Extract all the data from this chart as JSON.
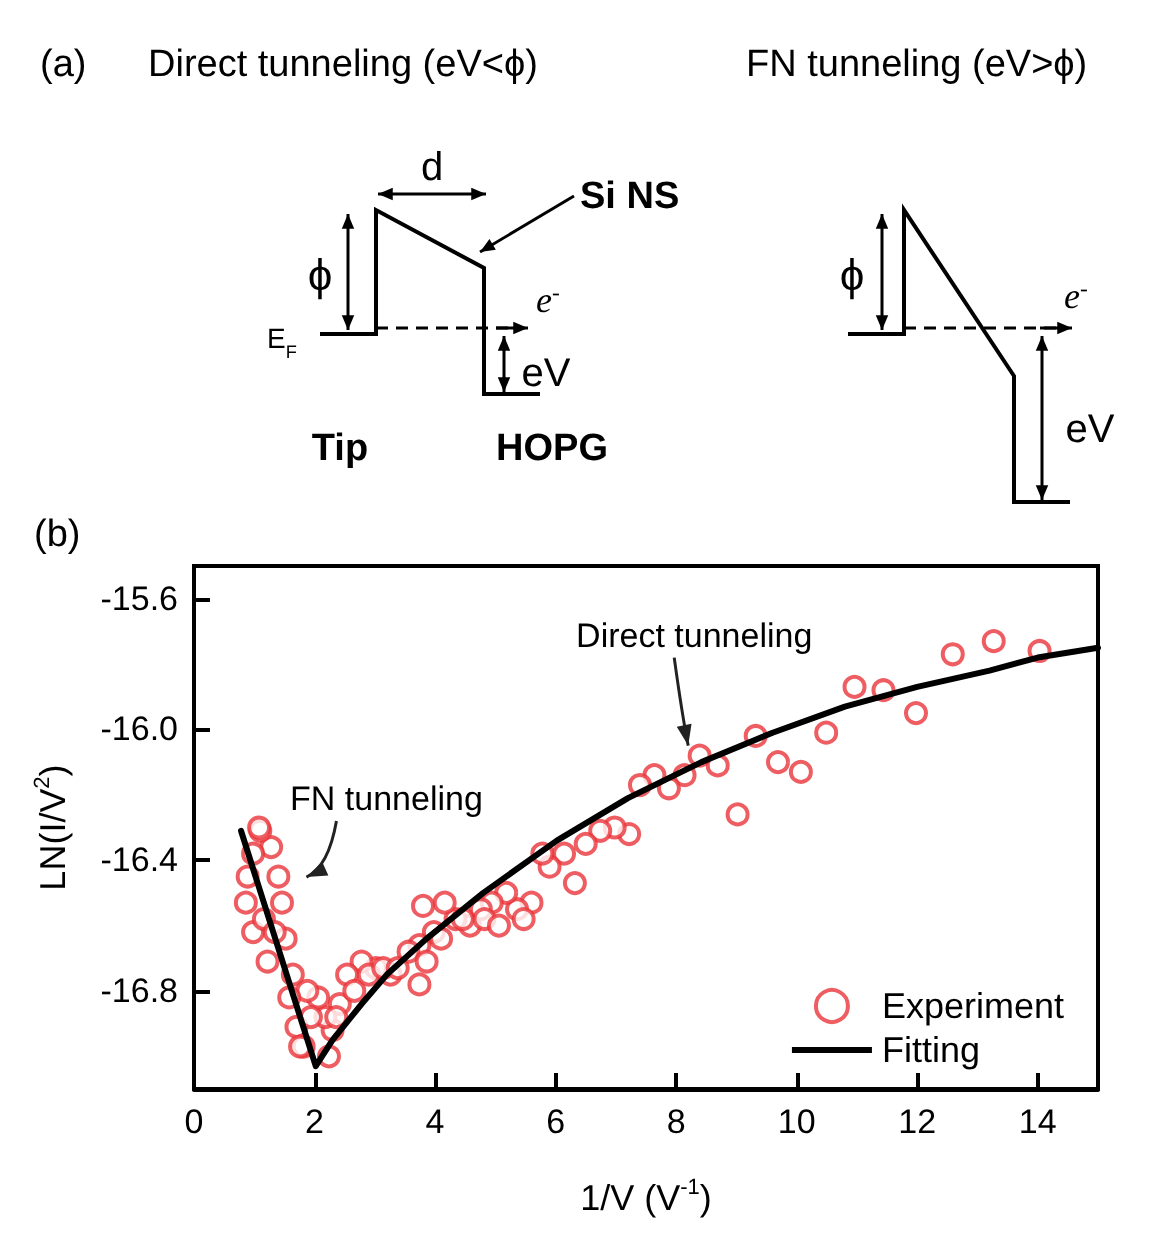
{
  "chart_data": [
    {
      "type": "other",
      "title": "(a)",
      "annotations": [
        "Direct tunneling (eV<ϕ)",
        "FN tunneling (eV>ϕ)",
        "d",
        "Si NS",
        "ϕ",
        "E$_{F}$",
        "e$^{-}$",
        "eV",
        "Tip",
        "HOPG",
        "ϕ",
        "e$^{-}$",
        "eV"
      ]
    },
    {
      "type": "scatter",
      "title": "(b)",
      "xlabel": "1/V (V$^{-1}$)",
      "ylabel": "LN(I/V$^{2}$)",
      "xlim": [
        0,
        15
      ],
      "ylim": [
        -17.1,
        -15.5
      ],
      "xticks": [
        0,
        2,
        4,
        6,
        8,
        10,
        12,
        14
      ],
      "yticks": [
        -16.8,
        -16.4,
        {
          "value": -16,
          "label": "-16.0"
        },
        -15.6
      ],
      "grid": false,
      "legend": "bottom right",
      "annotations": [
        {
          "text": "FN tunneling",
          "x": 1.7,
          "y": -16.47
        },
        {
          "text": "Direct tunneling",
          "x": 8.3,
          "y": -16.08
        }
      ],
      "series": [
        {
          "name": "Experiment",
          "type": "scatter",
          "marker": "circle",
          "color": "#e8343a",
          "x": [
            14.03,
            13.27,
            12.59,
            11.98,
            11.44,
            10.96,
            10.49,
            10.07,
            9.69,
            9.32,
            9.02,
            8.69,
            8.39,
            8.14,
            7.88,
            7.64,
            7.4,
            7.22,
            6.98,
            6.74,
            6.5,
            6.32,
            6.14,
            5.9,
            5.78,
            5.6,
            5.36,
            5.18,
            4.94,
            4.76,
            4.58,
            4.34,
            4.16,
            3.98,
            3.8,
            3.74,
            3.56,
            3.74,
            3.26,
            3.02,
            2.78,
            2.54,
            2.42,
            2.3,
            2.24,
            2.18,
            2.06,
            1.88,
            1.82,
            1.7,
            1.64,
            1.52,
            1.46,
            1.4,
            1.28,
            1.1,
            1.08,
            0.98,
            0.89,
            0.86,
            0.98,
            1.16,
            1.22,
            1.34,
            1.58,
            1.76,
            1.94,
            2.36,
            2.66,
            2.9,
            3.14,
            3.38,
            3.86,
            4.1,
            4.46,
            4.82,
            5.06,
            5.47
          ],
          "values": [
            -15.76,
            -15.73,
            -15.77,
            -15.95,
            -15.88,
            -15.87,
            -16.01,
            -16.13,
            -16.1,
            -16.02,
            -16.26,
            -16.11,
            -16.08,
            -16.14,
            -16.18,
            -16.14,
            -16.17,
            -16.32,
            -16.3,
            -16.31,
            -16.35,
            -16.47,
            -16.38,
            -16.42,
            -16.38,
            -16.53,
            -16.55,
            -16.5,
            -16.53,
            -16.55,
            -16.6,
            -16.58,
            -16.53,
            -16.62,
            -16.54,
            -16.66,
            -16.68,
            -16.78,
            -16.75,
            -16.73,
            -16.71,
            -16.75,
            -16.84,
            -16.92,
            -17.0,
            -16.88,
            -16.82,
            -16.8,
            -16.97,
            -16.91,
            -16.75,
            -16.64,
            -16.53,
            -16.45,
            -16.36,
            -16.31,
            -16.3,
            -16.38,
            -16.45,
            -16.53,
            -16.62,
            -16.58,
            -16.71,
            -16.62,
            -16.82,
            -16.97,
            -16.88,
            -16.88,
            -16.8,
            -16.75,
            -16.73,
            -16.73,
            -16.71,
            -16.64,
            -16.58,
            -16.58,
            -16.6,
            -16.58
          ]
        },
        {
          "name": "Fitting",
          "type": "line",
          "marker": "none",
          "color": "#000000",
          "x": [
            0.78,
            2.02,
            2.3,
            2.78,
            3.2,
            3.86,
            4.8,
            6.02,
            7.2,
            8.42,
            9.6,
            10.8,
            12,
            13.2,
            14,
            15
          ],
          "values": [
            -16.31,
            -17.03,
            -16.95,
            -16.84,
            -16.75,
            -16.64,
            -16.5,
            -16.34,
            -16.21,
            -16.1,
            -16.01,
            -15.93,
            -15.87,
            -15.82,
            -15.78,
            -15.75
          ]
        }
      ]
    }
  ]
}
